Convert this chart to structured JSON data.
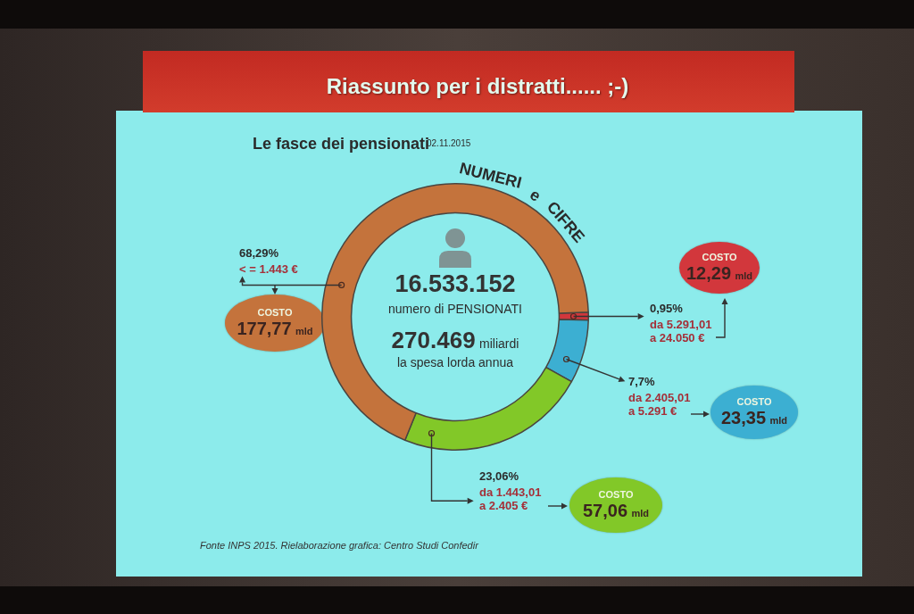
{
  "chart_data": {
    "type": "donut",
    "title": "Riassunto per i distratti...... ;-)",
    "subtitle": "Le fasce dei pensionati",
    "categories": [
      "da 5.291,01 a 24.050 €",
      "da 2.405,01 a 5.291 €",
      "da 1.443,01 a 2.405 €",
      "< = 1.443 €"
    ],
    "values": [
      0.95,
      7.7,
      23.06,
      68.29
    ],
    "colors": [
      "#d2373c",
      "#3cafd2",
      "#82c828",
      "#c4733c"
    ],
    "value_labels": [
      "0,95%",
      "7,7%",
      "23,06%",
      "68,29%"
    ],
    "annotations": [
      "02.11.2015",
      "NUMERI e CIFRE",
      "16.533.152",
      "numero di PENSIONATI",
      "270.469 miliardi",
      "la spesa lorda annua",
      "COSTO 12,29 mld",
      "COSTO 23,35 mld",
      "COSTO 57,06 mld",
      "COSTO 177,77 mld",
      "Fonte INPS 2015. Rielaborazione grafica: Centro Studi Confedir"
    ]
  }
}
